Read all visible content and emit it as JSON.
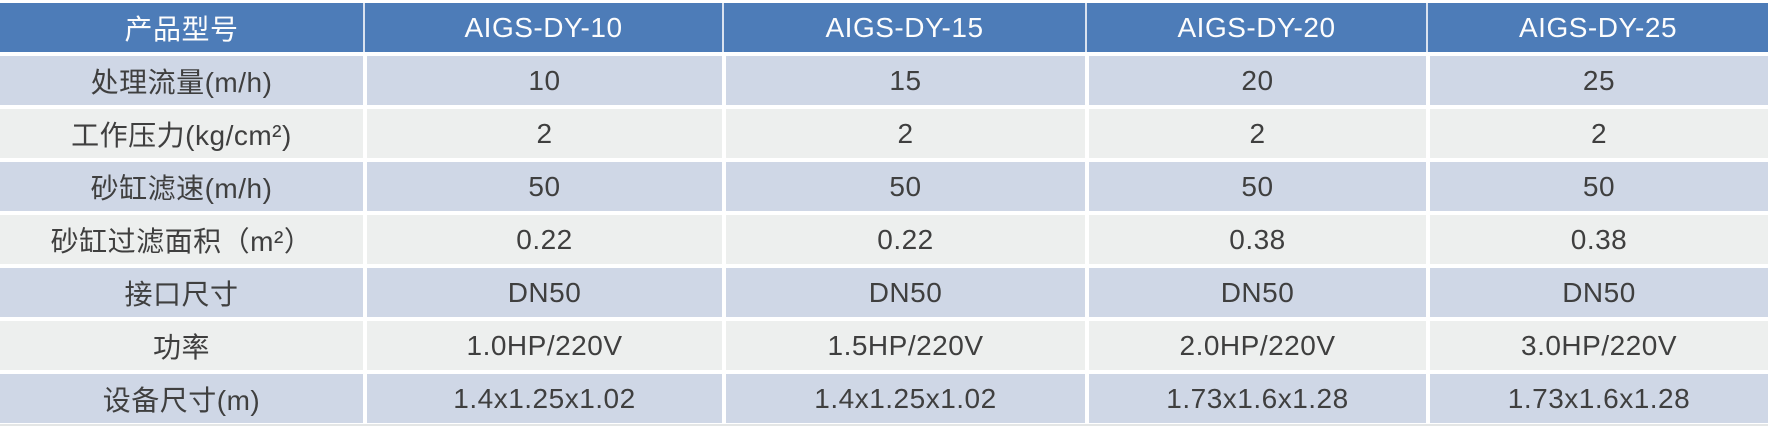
{
  "table": {
    "header": {
      "label": "产品型号",
      "models": [
        "AIGS-DY-10",
        "AIGS-DY-15",
        "AIGS-DY-20",
        "AIGS-DY-25"
      ]
    },
    "rows": [
      {
        "label": "处理流量(m/h)",
        "values": [
          "10",
          "15",
          "20",
          "25"
        ]
      },
      {
        "label": "工作压力(kg/cm²)",
        "values": [
          "2",
          "2",
          "2",
          "2"
        ]
      },
      {
        "label": "砂缸滤速(m/h)",
        "values": [
          "50",
          "50",
          "50",
          "50"
        ]
      },
      {
        "label": "砂缸过滤面积（m²）",
        "values": [
          "0.22",
          "0.22",
          "0.38",
          "0.38"
        ]
      },
      {
        "label": "接口尺寸",
        "values": [
          "DN50",
          "DN50",
          "DN50",
          "DN50"
        ]
      },
      {
        "label": "功率",
        "values": [
          "1.0HP/220V",
          "1.5HP/220V",
          "2.0HP/220V",
          "3.0HP/220V"
        ]
      },
      {
        "label": "设备尺寸(m)",
        "values": [
          "1.4x1.25x1.02",
          "1.4x1.25x1.02",
          "1.73x1.6x1.28",
          "1.73x1.6x1.28"
        ]
      }
    ],
    "colors": {
      "header_bg": "#4d7cb8",
      "header_text": "#fdfdfd",
      "row_blue": "#cfd7e6",
      "row_gray": "#edefee",
      "value_text": "#3f3f3f"
    }
  }
}
